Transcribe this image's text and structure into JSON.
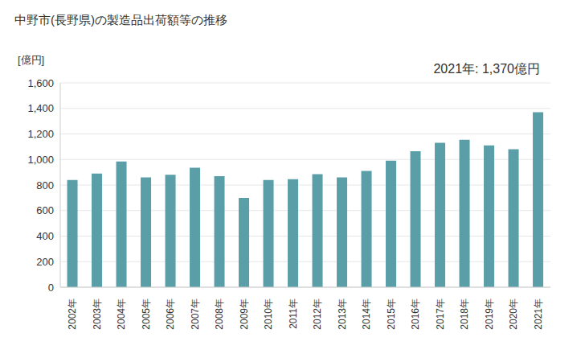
{
  "chart_data": {
    "type": "bar",
    "title": "中野市(長野県)の製造品出荷額等の推移",
    "y_label": "[億円]",
    "annotation": "2021年: 1,370億円",
    "categories": [
      "2002年",
      "2003年",
      "2004年",
      "2005年",
      "2006年",
      "2007年",
      "2008年",
      "2009年",
      "2010年",
      "2011年",
      "2012年",
      "2013年",
      "2014年",
      "2015年",
      "2016年",
      "2017年",
      "2018年",
      "2019年",
      "2020年",
      "2021年"
    ],
    "values": [
      840,
      890,
      985,
      860,
      880,
      935,
      870,
      700,
      840,
      845,
      885,
      860,
      910,
      990,
      1065,
      1130,
      1155,
      1110,
      1080,
      1370
    ],
    "color": "#5a9fa8",
    "ylim": [
      0,
      1600
    ],
    "yticks": [
      0,
      200,
      400,
      600,
      800,
      {
        "value": 1000,
        "label": "1,000"
      },
      {
        "value": 1200,
        "label": "1,200"
      },
      {
        "value": 1400,
        "label": "1,400"
      },
      {
        "value": 1600,
        "label": "1,600"
      }
    ],
    "grid": true
  }
}
